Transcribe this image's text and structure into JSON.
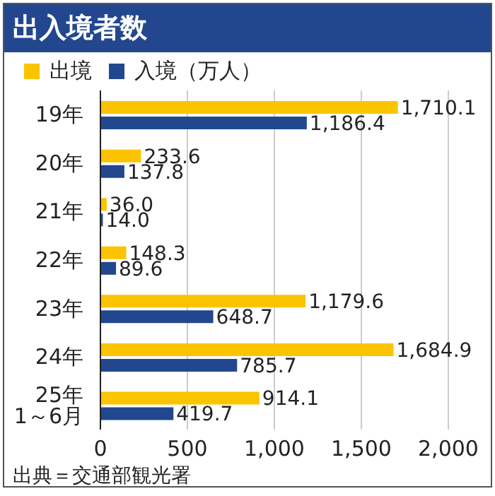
{
  "chart_data": {
    "type": "bar",
    "orientation": "horizontal",
    "title": "出入境者数",
    "categories": [
      "19年",
      "20年",
      "21年",
      "22年",
      "23年",
      "24年",
      "25年\n1～6月"
    ],
    "series": [
      {
        "name": "出境",
        "color": "#fcc400",
        "values": [
          1710.1,
          233.6,
          36.0,
          148.3,
          1179.6,
          1684.9,
          914.1
        ],
        "value_labels": [
          "1,710.1",
          "233.6",
          "36.0",
          "148.3",
          "1,179.6",
          "1,684.9",
          "914.1"
        ]
      },
      {
        "name": "入境（万人）",
        "color": "#22478f",
        "values": [
          1186.4,
          137.8,
          14.0,
          89.6,
          648.7,
          785.7,
          419.7
        ],
        "value_labels": [
          "1,186.4",
          "137.8",
          "14.0",
          "89.6",
          "648.7",
          "785.7",
          "419.7"
        ]
      }
    ],
    "xlim": [
      0,
      2000
    ],
    "xticks": [
      {
        "value": 0,
        "label": "0"
      },
      {
        "value": 500,
        "label": "500"
      },
      {
        "value": 1000,
        "label": "1,000"
      },
      {
        "value": 1500,
        "label": "1,500"
      },
      {
        "value": 2000,
        "label": "2,000"
      }
    ],
    "grid": "x",
    "legend": "top left",
    "annotations": [
      "出典＝交通部観光署"
    ]
  }
}
